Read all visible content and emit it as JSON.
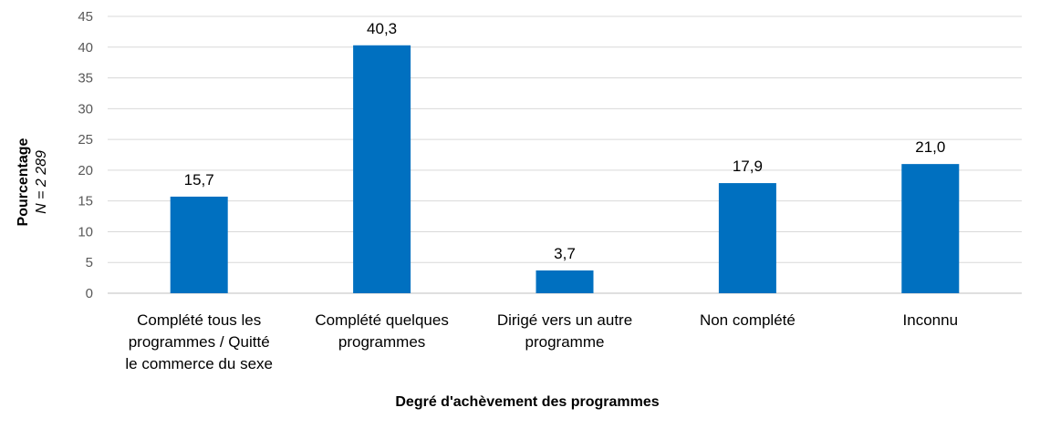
{
  "chart_data": {
    "type": "bar",
    "categories": [
      "Complété tous les programmes / Quitté le commerce du sexe",
      "Complété quelques programmes",
      "Dirigé vers un autre programme",
      "Non complété",
      "Inconnu"
    ],
    "category_lines": [
      [
        "Complété tous les",
        "programmes / Quitté",
        "le commerce du sexe"
      ],
      [
        "Complété quelques",
        "programmes"
      ],
      [
        "Dirigé vers un autre",
        "programme"
      ],
      [
        "Non complété"
      ],
      [
        "Inconnu"
      ]
    ],
    "values": [
      15.7,
      40.3,
      3.7,
      17.9,
      21.0
    ],
    "data_labels": [
      "15,7",
      "40,3",
      "3,7",
      "17,9",
      "21,0"
    ],
    "xlabel": "Degré d'achèvement des programmes",
    "ylabel": "Pourcentage",
    "ylabel_sub": "N = 2 289",
    "ylim": [
      0,
      45
    ],
    "yticks": [
      0,
      5,
      10,
      15,
      20,
      25,
      30,
      35,
      40,
      45
    ],
    "grid": true,
    "legend": "none",
    "bar_color": "#0070c0"
  }
}
